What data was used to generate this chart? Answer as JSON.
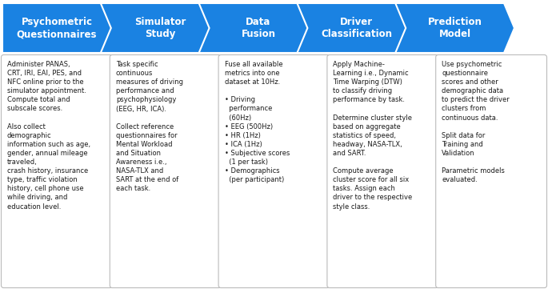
{
  "arrow_color_light": "#2196F3",
  "arrow_color_dark": "#1565C0",
  "text_color_light": "#FFFFFF",
  "text_color_dark": "#1a1a1a",
  "box_border_color": "#AAAAAA",
  "box_bg_color": "#FFFFFF",
  "fig_bg": "#FFFFFF",
  "headers": [
    "Psychometric\nQuestionnaires",
    "Simulator\nStudy",
    "Data\nFusion",
    "Driver\nClassification",
    "Prediction\nModel"
  ],
  "bodies": [
    "Administer PANAS,\nCRT, IRI, EAI, PES, and\nNFC online prior to the\nsimulator appointment.\nCompute total and\nsubscale scores.\n\nAlso collect\ndemographic\ninformation such as age,\ngender, annual mileage\ntraveled,\ncrash history, insurance\ntype, traffic violation\nhistory, cell phone use\nwhile driving, and\neducation level.",
    "Task specific\ncontinuous\nmeasures of driving\nperformance and\npsychophysiology\n(EEG, HR, ICA).\n\nCollect reference\nquestionnaires for\nMental Workload\nand Situation\nAwareness i.e.,\nNASA-TLX and\nSART at the end of\neach task.",
    "Fuse all available\nmetrics into one\ndataset at 10Hz.\n\n• Driving\n  performance\n  (60Hz)\n• EEG (500Hz)\n• HR (1Hz)\n• ICA (1Hz)\n• Subjective scores\n  (1 per task)\n• Demographics\n  (per participant)",
    "Apply Machine-\nLearning i.e., Dynamic\nTime Warping (DTW)\nto classify driving\nperformance by task.\n\nDetermine cluster style\nbased on aggregate\nstatistics of speed,\nheadway, NASA-TLX,\nand SART.\n\nCompute average\ncluster score for all six\ntasks. Assign each\ndriver to the respective\nstyle class.",
    "Use psychometric\nquestionnaire\nscores and other\ndemographic data\nto predict the driver\nclusters from\ncontinuous data.\n\nSplit data for\nTraining and\nValidation\n\nParametric models\nevaluated."
  ]
}
